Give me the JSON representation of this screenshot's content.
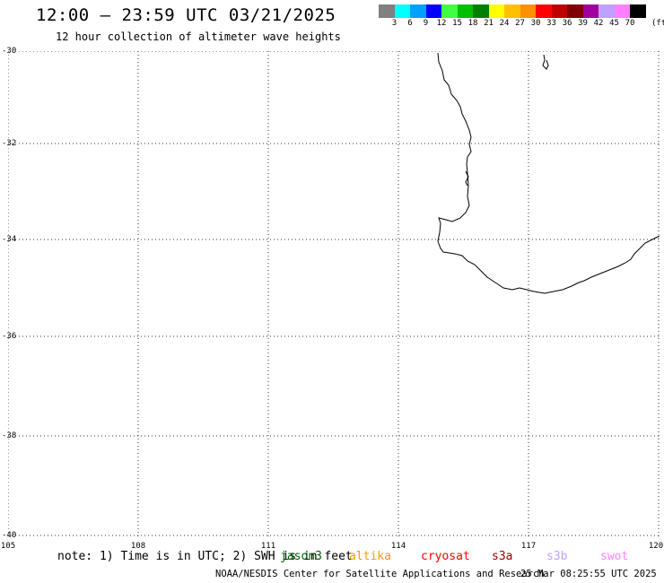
{
  "header": {
    "title": "12:00 – 23:59 UTC 03/21/2025",
    "subtitle": "12 hour collection of altimeter wave heights"
  },
  "colorbar": {
    "colors": [
      "#808080",
      "#00ffff",
      "#00a0ff",
      "#0000ff",
      "#40ff40",
      "#00c000",
      "#008000",
      "#ffff00",
      "#ffc000",
      "#ff9000",
      "#ff0000",
      "#c00000",
      "#800000",
      "#a000a0",
      "#c0a0ff",
      "#ff80ff",
      "#000000"
    ],
    "labels": [
      "3",
      "6",
      "9",
      "12",
      "15",
      "18",
      "21",
      "24",
      "27",
      "30",
      "33",
      "36",
      "39",
      "42",
      "45",
      "70"
    ],
    "unit": "(ft)"
  },
  "map": {
    "lon_labels": [
      "105",
      "108",
      "111",
      "114",
      "117",
      "120"
    ],
    "lat_labels": [
      "-30",
      "-32",
      "-34",
      "-36",
      "-38",
      "-40"
    ],
    "grid": true
  },
  "footer": {
    "note": "note: 1) Time is in UTC; 2) SWH is in feet",
    "missions": [
      {
        "name": "jason3",
        "color": "#006400"
      },
      {
        "name": "altika",
        "color": "#ff9900"
      },
      {
        "name": "cryosat",
        "color": "#ff0000"
      },
      {
        "name": "s3a",
        "color": "#990000"
      },
      {
        "name": "s3b",
        "color": "#c0a0ff"
      },
      {
        "name": "swot",
        "color": "#ff80ff"
      }
    ],
    "credit": "NOAA/NESDIS Center for Satellite Applications and Research",
    "timestamp": "25 Mar 08:25:55 UTC 2025"
  }
}
